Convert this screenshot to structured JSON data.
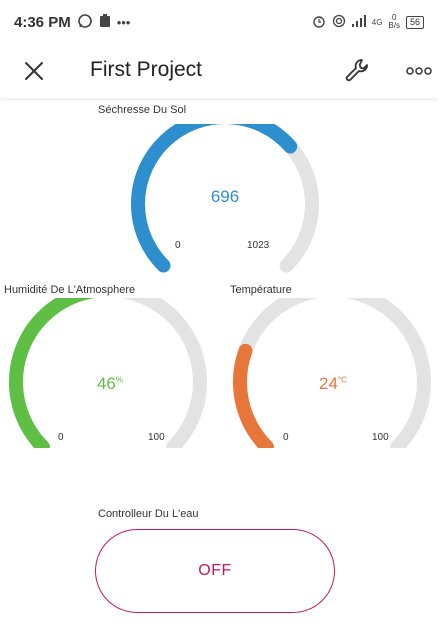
{
  "status_bar": {
    "time": "4:36 PM",
    "dots": "•••",
    "network": "4G",
    "speed_value": "0",
    "speed_unit": "B/s",
    "battery": "56"
  },
  "app_bar": {
    "title": "First Project"
  },
  "gauges": [
    {
      "label": "Séchresse Du Sol",
      "value": "696",
      "unit": "",
      "min": "0",
      "max": "1023",
      "fraction": 0.68,
      "color": "#2e8fcf"
    },
    {
      "label": "Humidité De L'Atmosphere",
      "value": "46",
      "unit": "%",
      "min": "0",
      "max": "100",
      "fraction": 0.46,
      "color": "#5fbf45"
    },
    {
      "label": "Température",
      "value": "24",
      "unit": "°C",
      "min": "0",
      "max": "100",
      "fraction": 0.24,
      "color": "#e8763a"
    }
  ],
  "button": {
    "label": "Controlleur Du L'eau",
    "state": "OFF"
  },
  "colors": {
    "track": "#e3e3e3",
    "button_accent": "#c2185b"
  }
}
